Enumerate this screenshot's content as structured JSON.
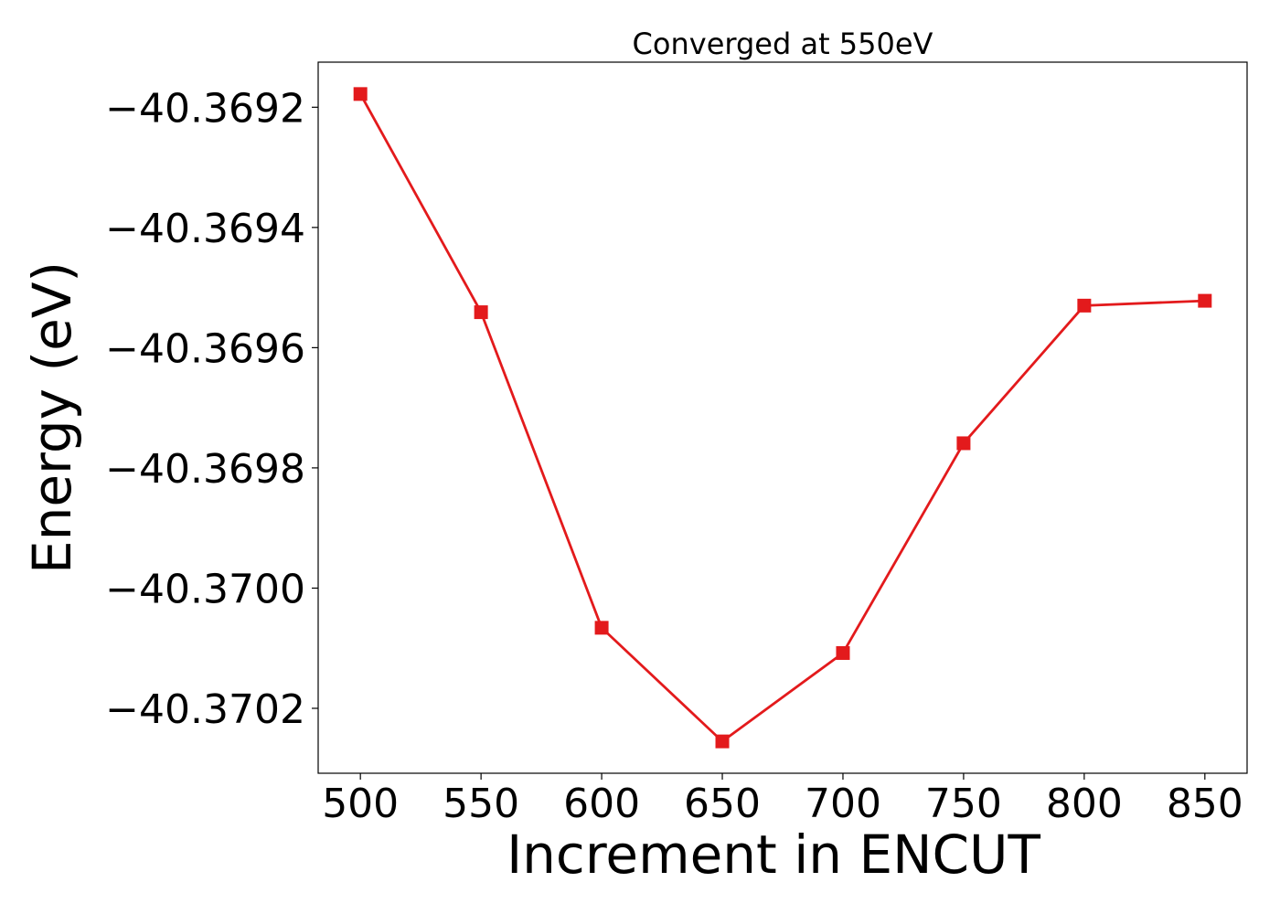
{
  "chart_data": {
    "type": "line",
    "title": "Converged at 550eV",
    "xlabel": "Increment in ENCUT",
    "ylabel": "Energy (eV)",
    "x": [
      500,
      550,
      600,
      650,
      700,
      750,
      800,
      850
    ],
    "series": [
      {
        "values": [
          -40.369178,
          -40.369541,
          -40.370066,
          -40.370255,
          -40.370108,
          -40.369759,
          -40.36953,
          -40.369522
        ],
        "color": "#e31a1c",
        "marker": "square"
      }
    ],
    "xticks": [
      500,
      550,
      600,
      650,
      700,
      750,
      800,
      850
    ],
    "xtick_labels": [
      "500",
      "550",
      "600",
      "650",
      "700",
      "750",
      "800",
      "850"
    ],
    "yticks": [
      -40.3692,
      -40.3694,
      -40.3696,
      -40.3698,
      -40.37,
      -40.3702
    ],
    "ytick_labels": [
      "−40.3692",
      "−40.3694",
      "−40.3696",
      "−40.3698",
      "−40.3700",
      "−40.3702"
    ],
    "xlim": [
      482.5,
      867.5
    ],
    "ylim": [
      -40.370308,
      -40.369125
    ],
    "grid": false
  }
}
